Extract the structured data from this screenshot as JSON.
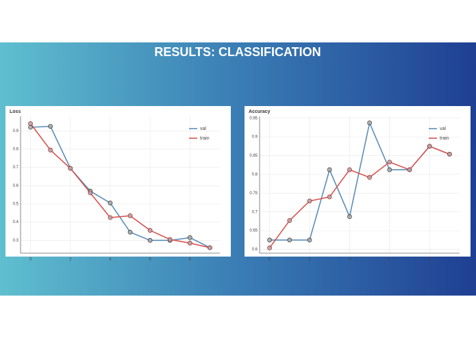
{
  "title": "RESULTS: CLASSIFICATION",
  "chart_data": [
    {
      "type": "line",
      "title": "Loss",
      "x": [
        0,
        1,
        2,
        3,
        4,
        5,
        6,
        7,
        8,
        9
      ],
      "series": [
        {
          "name": "val",
          "color": "#5b8db8",
          "values": [
            0.92,
            0.925,
            0.695,
            0.57,
            0.505,
            0.345,
            0.3,
            0.3,
            0.315,
            0.26
          ]
        },
        {
          "name": "train",
          "color": "#d9534f",
          "values": [
            0.94,
            0.795,
            0.695,
            0.56,
            0.425,
            0.435,
            0.355,
            0.305,
            0.285,
            0.26
          ]
        }
      ],
      "xlim": [
        -0.5,
        9.5
      ],
      "xticks": [
        0,
        2,
        4,
        6,
        8
      ],
      "ylim": [
        0.23,
        0.98
      ],
      "yticks": [
        0.3,
        0.4,
        0.5,
        0.6,
        0.7,
        0.8,
        0.9
      ],
      "grid": true,
      "legend": "top-right"
    },
    {
      "type": "line",
      "title": "Accuracy",
      "x": [
        0,
        1,
        2,
        3,
        4,
        5,
        6,
        7,
        8,
        9
      ],
      "series": [
        {
          "name": "val",
          "color": "#5b8db8",
          "values": [
            0.625,
            0.625,
            0.625,
            0.8125,
            0.6875,
            0.9375,
            0.8125,
            0.8125,
            0.875,
            0.854
          ]
        },
        {
          "name": "train",
          "color": "#d9534f",
          "values": [
            0.604,
            0.677,
            0.729,
            0.74,
            0.8125,
            0.792,
            0.833,
            0.8125,
            0.875,
            0.854
          ]
        }
      ],
      "xlim": [
        -0.5,
        9.5
      ],
      "xticks": [
        0,
        2,
        4,
        6,
        8
      ],
      "ylim": [
        0.59,
        0.955
      ],
      "yticks": [
        0.6,
        0.65,
        0.7,
        0.75,
        0.8,
        0.85,
        0.9,
        0.95
      ],
      "grid": true,
      "legend": "top-right"
    }
  ]
}
